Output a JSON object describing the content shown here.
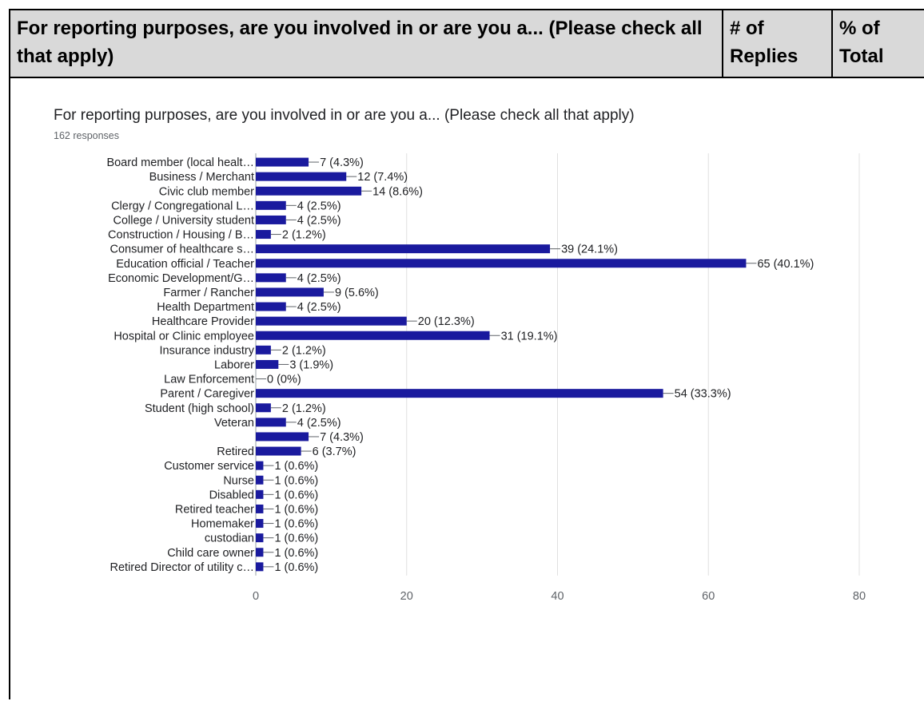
{
  "table": {
    "header": {
      "question": "For reporting purposes, are you involved in or are you a... (Please check all that apply)",
      "replies": "# of Replies",
      "percent": "% of Total"
    }
  },
  "colors": {
    "bar": "#1a1a9e",
    "grid": "#e0e0e0",
    "header_bg": "#d9d9d9"
  },
  "chart_data": {
    "type": "bar",
    "orientation": "horizontal",
    "title": "For reporting purposes, are you involved in or are you a... (Please check all that apply)",
    "subtitle": "162 responses",
    "xlim": [
      0,
      80
    ],
    "xticks": [
      "0",
      "20",
      "40",
      "60",
      "80"
    ],
    "grid": true,
    "categories": [
      "Board member (local healt…",
      "Business / Merchant",
      "Civic club member",
      "Clergy / Congregational L…",
      "College / University student",
      "Construction / Housing / B…",
      "Consumer of healthcare s…",
      "Education official / Teacher",
      "Economic Development/G…",
      "Farmer / Rancher",
      "Health Department",
      "Healthcare Provider",
      "Hospital or Clinic employee",
      "Insurance industry",
      "Laborer",
      "Law Enforcement",
      "Parent / Caregiver",
      "Student (high school)",
      "Veteran",
      "",
      "Retired",
      "Customer service",
      "Nurse",
      "Disabled",
      "Retired teacher",
      "Homemaker",
      "custodian",
      "Child care owner",
      "Retired Director of utility c…"
    ],
    "values": [
      7,
      12,
      14,
      4,
      4,
      2,
      39,
      65,
      4,
      9,
      4,
      20,
      31,
      2,
      3,
      0,
      54,
      2,
      4,
      7,
      6,
      1,
      1,
      1,
      1,
      1,
      1,
      1,
      1
    ],
    "data_labels": [
      "7 (4.3%)",
      "12 (7.4%)",
      "14 (8.6%)",
      "4 (2.5%)",
      "4 (2.5%)",
      "2 (1.2%)",
      "39 (24.1%)",
      "65 (40.1%)",
      "4 (2.5%)",
      "9 (5.6%)",
      "4 (2.5%)",
      "20 (12.3%)",
      "31 (19.1%)",
      "2 (1.2%)",
      "3 (1.9%)",
      "0 (0%)",
      "54 (33.3%)",
      "2 (1.2%)",
      "4 (2.5%)",
      "7 (4.3%)",
      "6 (3.7%)",
      "1 (0.6%)",
      "1 (0.6%)",
      "1 (0.6%)",
      "1 (0.6%)",
      "1 (0.6%)",
      "1 (0.6%)",
      "1 (0.6%)",
      "1 (0.6%)"
    ]
  }
}
